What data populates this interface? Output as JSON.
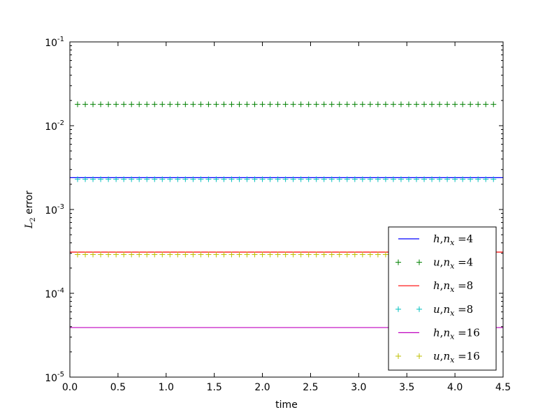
{
  "chart_data": {
    "type": "line",
    "xlabel": "time",
    "ylabel": "L2 error",
    "ylabel_base": "L",
    "ylabel_sub": "2",
    "ylabel_rest": " error",
    "xlim": [
      0.0,
      4.5
    ],
    "ylim": [
      1e-05,
      0.1
    ],
    "yscale": "log",
    "grid": false,
    "legend_position": "lower-right",
    "x_ticks": [
      "0.0",
      "0.5",
      "1.0",
      "1.5",
      "2.0",
      "2.5",
      "3.0",
      "3.5",
      "4.0",
      "4.5"
    ],
    "y_ticks": [
      {
        "base": "10",
        "exp": "-5",
        "value": 1e-05
      },
      {
        "base": "10",
        "exp": "-4",
        "value": 0.0001
      },
      {
        "base": "10",
        "exp": "-3",
        "value": 0.001
      },
      {
        "base": "10",
        "exp": "-2",
        "value": 0.01
      },
      {
        "base": "10",
        "exp": "-1",
        "value": 0.1
      }
    ],
    "x_start": 0.0,
    "x_end": 4.5,
    "marker_x_start": 0.08,
    "marker_x_end": 4.4,
    "marker_x_step": 0.08,
    "series": [
      {
        "var": "h",
        "n": "4",
        "style": "line",
        "color": "#0000ff",
        "value": 0.0024
      },
      {
        "var": "u",
        "n": "4",
        "style": "plus",
        "color": "#008000",
        "value": 0.018
      },
      {
        "var": "h",
        "n": "8",
        "style": "line",
        "color": "#ff0000",
        "value": 0.00031
      },
      {
        "var": "u",
        "n": "8",
        "style": "plus",
        "color": "#00bfbf",
        "value": 0.0023
      },
      {
        "var": "h",
        "n": "16",
        "style": "line",
        "color": "#bf00bf",
        "value": 3.9e-05
      },
      {
        "var": "u",
        "n": "16",
        "style": "plus",
        "color": "#bfbf00",
        "value": 0.00029
      }
    ]
  }
}
